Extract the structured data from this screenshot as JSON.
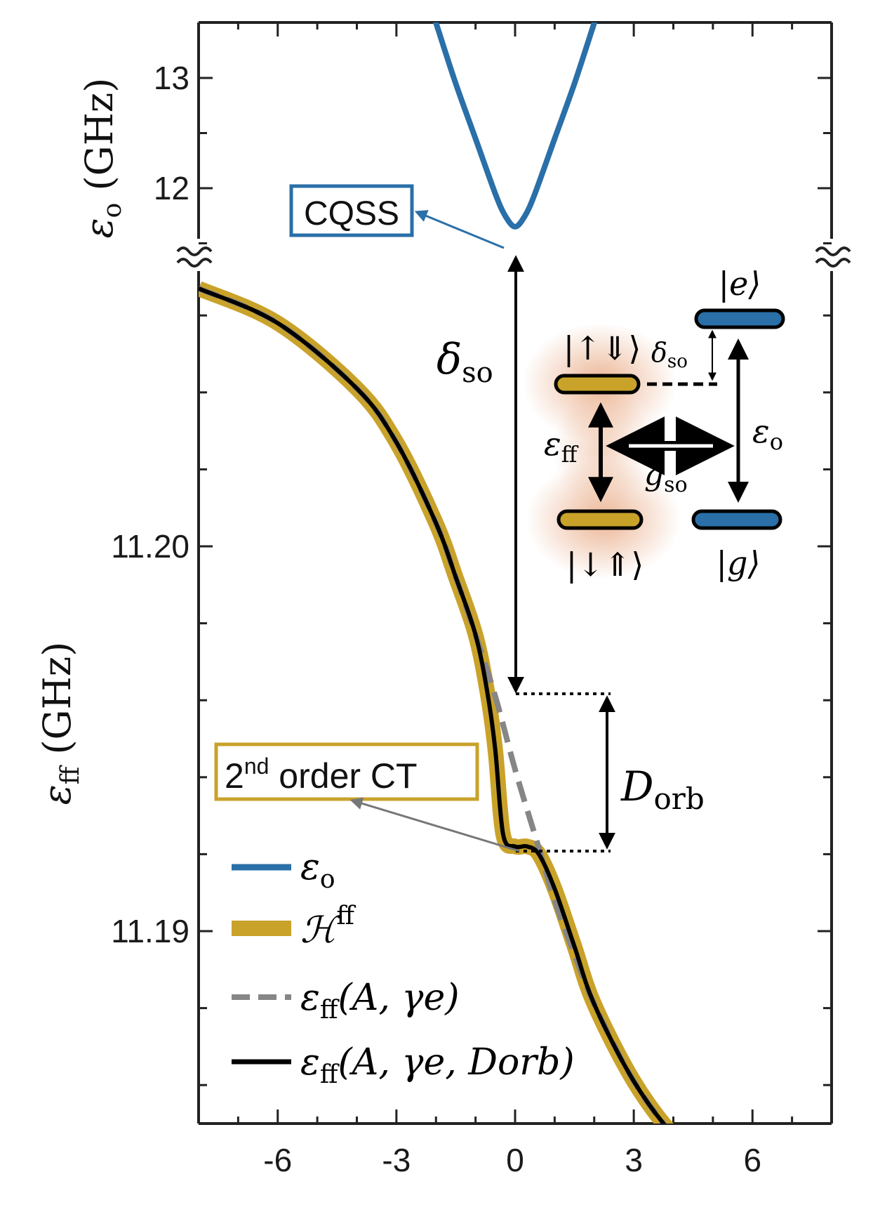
{
  "colors": {
    "blue": "#2a6fa8",
    "gold": "#c9a22a",
    "gray": "#868686",
    "black": "#000000",
    "glow": "#e8b89a"
  },
  "chart_data": {
    "type": "line",
    "x_ticks": [
      -6,
      -3,
      0,
      3,
      6
    ],
    "xlim": [
      -8,
      8
    ],
    "top_panel": {
      "ylabel": "εo (GHz)",
      "y_ticks": [
        12,
        13
      ],
      "ylim": [
        11.4,
        13.5
      ]
    },
    "bottom_panel": {
      "ylabel": "εff (GHz)",
      "y_ticks": [
        "11.19",
        "11.20"
      ],
      "ylim": [
        11.1854,
        11.2132
      ]
    },
    "series": [
      {
        "name": "εo",
        "color": "#2a6fa8",
        "x": [
          -2.0,
          -1.5,
          -1.0,
          -0.5,
          -0.25,
          0,
          0.25,
          0.5,
          1.0,
          1.5,
          2.0
        ],
        "y": [
          13.5,
          12.95,
          12.45,
          11.95,
          11.75,
          11.65,
          11.75,
          11.95,
          12.45,
          12.95,
          13.5
        ]
      },
      {
        "name": "ℋff",
        "color": "#c9a22a",
        "x": [
          -8,
          -6,
          -4,
          -3,
          -2,
          -1.5,
          -1,
          -0.7,
          -0.5,
          -0.3,
          0,
          0.3,
          0.6,
          1,
          1.5,
          2,
          3,
          4,
          5,
          6,
          7,
          8
        ],
        "y": [
          11.2067,
          11.2058,
          11.2041,
          11.2027,
          11.2006,
          11.1992,
          11.1977,
          11.1962,
          11.1947,
          11.1925,
          11.1922,
          11.1922,
          11.192,
          11.1911,
          11.1896,
          11.1881,
          11.1861,
          11.1847,
          11.1838,
          11.1832,
          11.1827,
          11.1824
        ]
      },
      {
        "name": "εff(A, γe)",
        "color": "#868686",
        "x": [
          -8,
          -6,
          -4,
          -3,
          -2,
          -1.5,
          -1,
          -0.5,
          0,
          0.5,
          1,
          1.5,
          2,
          3,
          4,
          5,
          6,
          7,
          8
        ],
        "y": [
          11.2067,
          11.2058,
          11.2041,
          11.2027,
          11.2006,
          11.1992,
          11.1977,
          11.1961,
          11.1942,
          11.1925,
          11.1908,
          11.1894,
          11.1881,
          11.1861,
          11.1847,
          11.1838,
          11.1832,
          11.1827,
          11.1824
        ]
      },
      {
        "name": "εff(A, γe, Dorb)",
        "color": "#000000",
        "x": [
          -8,
          -6,
          -4,
          -3,
          -2,
          -1.5,
          -1,
          -0.7,
          -0.5,
          -0.3,
          0,
          0.3,
          0.6,
          1,
          1.5,
          2,
          3,
          4,
          5,
          6,
          7,
          8
        ],
        "y": [
          11.2067,
          11.2058,
          11.2041,
          11.2027,
          11.2006,
          11.1992,
          11.1977,
          11.1962,
          11.1947,
          11.1925,
          11.1922,
          11.1922,
          11.192,
          11.1911,
          11.1896,
          11.1881,
          11.1861,
          11.1847,
          11.1838,
          11.1832,
          11.1827,
          11.1824
        ]
      }
    ],
    "legend_position": "bottom-left",
    "annotations": {
      "cqss": "CQSS",
      "second_order_sup": "nd",
      "second_order_num": "2",
      "second_order_rest": " order CT",
      "delta_so": "δ",
      "delta_so_sub": "so",
      "d_orb": "D",
      "d_orb_sub": "orb"
    },
    "inset": {
      "state_up": "|↑⇓⟩",
      "state_down": "|↓⇑⟩",
      "state_e": "|e⟩",
      "state_g": "|g⟩",
      "eps_ff": "ε",
      "eps_ff_sub": "ff",
      "eps_o": "ε",
      "eps_o_sub": "o",
      "g_so": "g",
      "g_so_sub": "so",
      "delta_so": "δ",
      "delta_so_sub": "so"
    }
  },
  "legend": {
    "items": [
      {
        "main": "ε",
        "sub": "o",
        "sup": ""
      },
      {
        "main": "ℋ",
        "sub": "",
        "sup": "ff"
      },
      {
        "main": "ε",
        "sub": "ff",
        "sup": "",
        "args": "(A, γe)"
      },
      {
        "main": "ε",
        "sub": "ff",
        "sup": "",
        "args": "(A, γe, Dorb)"
      }
    ]
  },
  "axis_labels": {
    "top_eps": "ε",
    "top_sub": "o",
    "top_unit": " (GHz)",
    "bot_eps": "ε",
    "bot_sub": "ff",
    "bot_unit": " (GHz)"
  }
}
